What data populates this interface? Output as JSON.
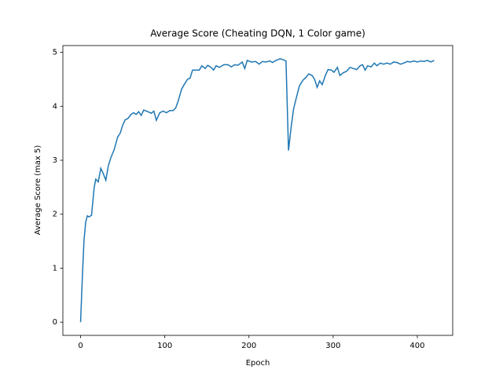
{
  "chart_data": {
    "type": "line",
    "title": "Average Score (Cheating DQN, 1 Color game)",
    "x_label": "Epoch",
    "y_label": "Average Score (max 5)",
    "xlim": [
      -21.05,
      442.05
    ],
    "ylim": [
      -0.245,
      5.125
    ],
    "xticks": [
      0,
      100,
      200,
      300,
      400
    ],
    "yticks": [
      0,
      1,
      2,
      3,
      4,
      5
    ],
    "series": [
      {
        "color": "#1f77b4",
        "x": [
          0,
          2,
          4,
          6,
          8,
          10,
          13,
          16,
          18,
          21,
          24,
          27,
          30,
          33,
          36,
          40,
          44,
          47,
          50,
          53,
          56,
          60,
          63,
          66,
          69,
          72,
          75,
          80,
          84,
          87,
          90,
          94,
          98,
          102,
          106,
          110,
          113,
          116,
          120,
          123,
          127,
          130,
          133,
          137,
          141,
          144,
          148,
          151,
          155,
          158,
          161,
          165,
          170,
          175,
          179,
          183,
          187,
          192,
          195,
          198,
          203,
          208,
          212,
          216,
          220,
          225,
          228,
          232,
          237,
          241,
          244,
          247,
          250,
          253,
          257,
          260,
          264,
          268,
          271,
          275,
          278,
          281,
          284,
          287,
          291,
          294,
          298,
          301,
          305,
          308,
          312,
          316,
          320,
          324,
          328,
          332,
          335,
          338,
          341,
          345,
          349,
          352,
          356,
          360,
          364,
          368,
          372,
          376,
          380,
          384,
          388,
          392,
          396,
          400,
          404,
          408,
          412,
          416,
          420
        ],
        "values": [
          0,
          0.8,
          1.5,
          1.85,
          1.97,
          1.95,
          1.98,
          2.48,
          2.65,
          2.6,
          2.85,
          2.75,
          2.63,
          2.9,
          3.05,
          3.2,
          3.43,
          3.5,
          3.65,
          3.75,
          3.77,
          3.85,
          3.88,
          3.85,
          3.9,
          3.83,
          3.93,
          3.9,
          3.87,
          3.91,
          3.74,
          3.88,
          3.91,
          3.88,
          3.92,
          3.92,
          3.97,
          4.1,
          4.32,
          4.4,
          4.5,
          4.52,
          4.67,
          4.67,
          4.67,
          4.75,
          4.7,
          4.76,
          4.72,
          4.67,
          4.75,
          4.72,
          4.77,
          4.77,
          4.73,
          4.77,
          4.76,
          4.82,
          4.7,
          4.85,
          4.82,
          4.83,
          4.78,
          4.83,
          4.82,
          4.84,
          4.81,
          4.85,
          4.88,
          4.86,
          4.84,
          3.18,
          3.6,
          3.95,
          4.2,
          4.38,
          4.48,
          4.54,
          4.6,
          4.57,
          4.5,
          4.35,
          4.47,
          4.4,
          4.58,
          4.68,
          4.67,
          4.63,
          4.72,
          4.57,
          4.62,
          4.65,
          4.72,
          4.7,
          4.68,
          4.75,
          4.77,
          4.67,
          4.75,
          4.73,
          4.8,
          4.75,
          4.8,
          4.78,
          4.8,
          4.78,
          4.82,
          4.81,
          4.78,
          4.8,
          4.83,
          4.82,
          4.84,
          4.82,
          4.84,
          4.83,
          4.85,
          4.82,
          4.85
        ]
      }
    ]
  }
}
